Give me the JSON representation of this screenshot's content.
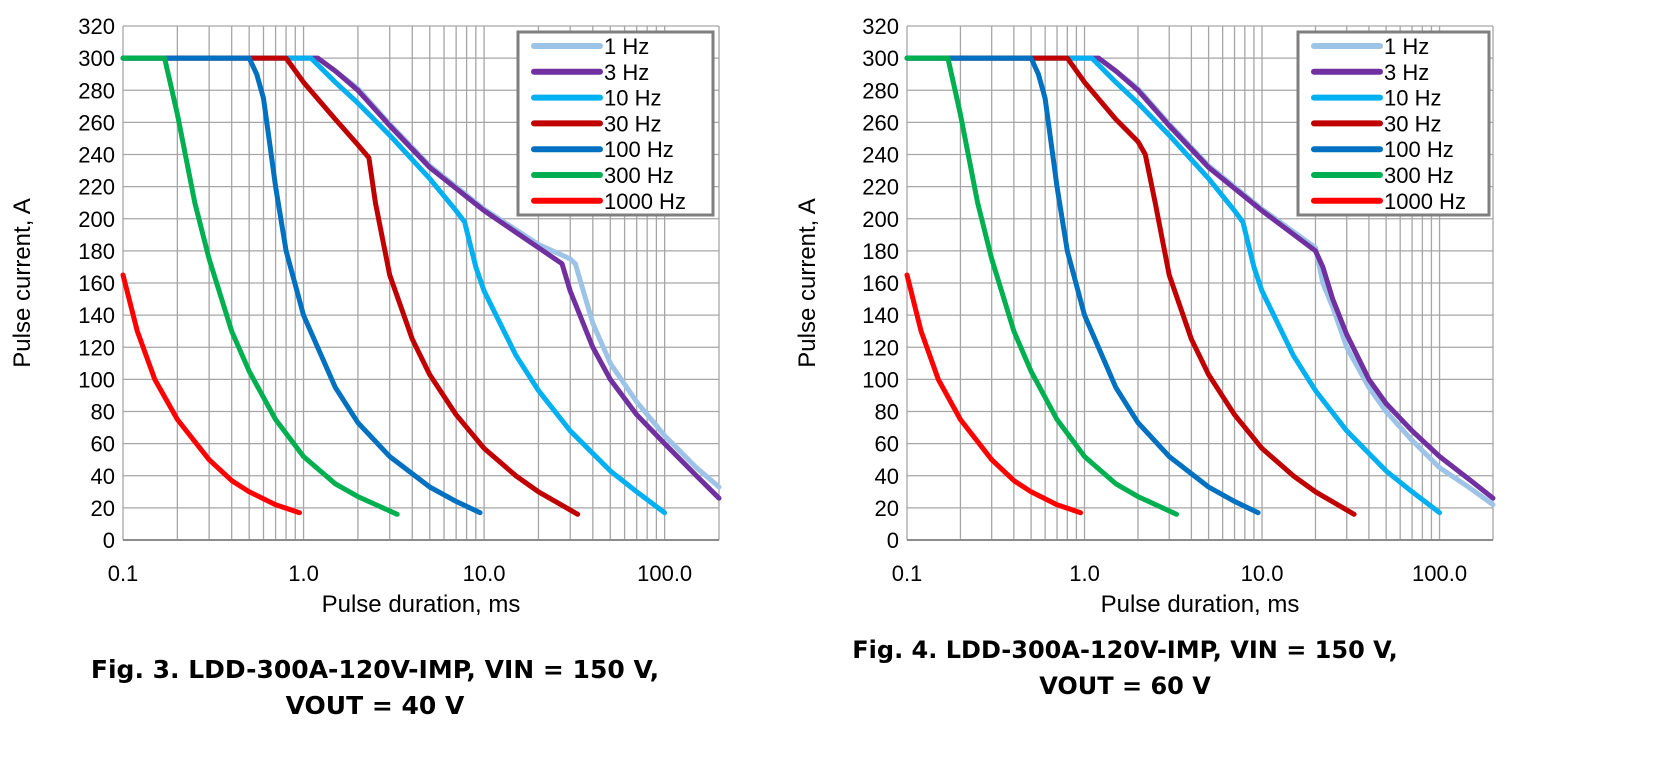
{
  "chart_data": [
    {
      "type": "line",
      "title": "",
      "caption_line1": "Fig. 3. LDD-300A-120V-IMP, VIN = 150 V,",
      "caption_line2": "VOUT = 40 V",
      "xlabel": "Pulse duration, ms",
      "ylabel": "Pulse current, A",
      "xscale": "log",
      "xlim": [
        0.1,
        200
      ],
      "ylim": [
        0,
        320
      ],
      "xticks": [
        0.1,
        1,
        10,
        100
      ],
      "xtick_labels": [
        "0.1",
        "1.0",
        "10.0",
        "100.0"
      ],
      "yticks": [
        0,
        20,
        40,
        60,
        80,
        100,
        120,
        140,
        160,
        180,
        200,
        220,
        240,
        260,
        280,
        300,
        320
      ],
      "ytick_labels": [
        "0",
        "20",
        "40",
        "60",
        "80",
        "100",
        "120",
        "140",
        "160",
        "180",
        "200",
        "220",
        "240",
        "260",
        "280",
        "300",
        "320"
      ],
      "grid": true,
      "legend_position": "top-right",
      "series": [
        {
          "name": "1 Hz",
          "color": "#9DC3E6",
          "points": [
            [
              0.1,
              300
            ],
            [
              1.2,
              300
            ],
            [
              1.5,
              292
            ],
            [
              2,
              281
            ],
            [
              3,
              259
            ],
            [
              5,
              233
            ],
            [
              10,
              206
            ],
            [
              20,
              184
            ],
            [
              30,
              175
            ],
            [
              32,
              172
            ],
            [
              40,
              135
            ],
            [
              50,
              110
            ],
            [
              70,
              86
            ],
            [
              100,
              65
            ],
            [
              150,
              45
            ],
            [
              200,
              33
            ]
          ]
        },
        {
          "name": "3 Hz",
          "color": "#7030A0",
          "points": [
            [
              0.1,
              300
            ],
            [
              1.2,
              300
            ],
            [
              1.5,
              292
            ],
            [
              2,
              280
            ],
            [
              3,
              258
            ],
            [
              5,
              232
            ],
            [
              10,
              205
            ],
            [
              20,
              182
            ],
            [
              27,
              172
            ],
            [
              30,
              155
            ],
            [
              40,
              120
            ],
            [
              50,
              100
            ],
            [
              70,
              78
            ],
            [
              100,
              60
            ],
            [
              150,
              40
            ],
            [
              200,
              26
            ]
          ]
        },
        {
          "name": "10 Hz",
          "color": "#00B0F0",
          "points": [
            [
              0.1,
              300
            ],
            [
              1.1,
              300
            ],
            [
              1.5,
              285
            ],
            [
              2,
              272
            ],
            [
              3,
              252
            ],
            [
              5,
              225
            ],
            [
              7,
              205
            ],
            [
              7.8,
              198
            ],
            [
              9,
              170
            ],
            [
              10,
              155
            ],
            [
              15,
              115
            ],
            [
              20,
              93
            ],
            [
              30,
              68
            ],
            [
              50,
              43
            ],
            [
              70,
              30
            ],
            [
              100,
              17
            ]
          ]
        },
        {
          "name": "30 Hz",
          "color": "#C00000",
          "points": [
            [
              0.1,
              300
            ],
            [
              0.8,
              300
            ],
            [
              1.0,
              285
            ],
            [
              1.5,
              262
            ],
            [
              2.0,
              246
            ],
            [
              2.3,
              238
            ],
            [
              2.5,
              210
            ],
            [
              3,
              165
            ],
            [
              4,
              125
            ],
            [
              5,
              103
            ],
            [
              7,
              78
            ],
            [
              10,
              57
            ],
            [
              15,
              40
            ],
            [
              20,
              30
            ],
            [
              33,
              16
            ]
          ]
        },
        {
          "name": "100 Hz",
          "color": "#0070C0",
          "points": [
            [
              0.1,
              300
            ],
            [
              0.5,
              300
            ],
            [
              0.55,
              290
            ],
            [
              0.6,
              275
            ],
            [
              0.7,
              220
            ],
            [
              0.8,
              180
            ],
            [
              1.0,
              140
            ],
            [
              1.5,
              95
            ],
            [
              2,
              73
            ],
            [
              3,
              52
            ],
            [
              5,
              33
            ],
            [
              7,
              24
            ],
            [
              9.5,
              17
            ]
          ]
        },
        {
          "name": "300 Hz",
          "color": "#00B050",
          "points": [
            [
              0.1,
              300
            ],
            [
              0.17,
              300
            ],
            [
              0.2,
              265
            ],
            [
              0.25,
              210
            ],
            [
              0.3,
              175
            ],
            [
              0.4,
              130
            ],
            [
              0.5,
              105
            ],
            [
              0.7,
              75
            ],
            [
              1.0,
              52
            ],
            [
              1.5,
              35
            ],
            [
              2.0,
              27
            ],
            [
              3.3,
              16
            ]
          ]
        },
        {
          "name": "1000 Hz",
          "color": "#FF0000",
          "points": [
            [
              0.1,
              165
            ],
            [
              0.12,
              130
            ],
            [
              0.15,
              100
            ],
            [
              0.2,
              75
            ],
            [
              0.3,
              50
            ],
            [
              0.4,
              37
            ],
            [
              0.5,
              30
            ],
            [
              0.7,
              22
            ],
            [
              0.95,
              17
            ]
          ]
        }
      ]
    },
    {
      "type": "line",
      "title": "",
      "caption_line1": "Fig. 4. LDD-300A-120V-IMP, VIN = 150 V,",
      "caption_line2": "VOUT = 60 V",
      "xlabel": "Pulse duration, ms",
      "ylabel": "Pulse current, A",
      "xscale": "log",
      "xlim": [
        0.1,
        200
      ],
      "ylim": [
        0,
        320
      ],
      "xticks": [
        0.1,
        1,
        10,
        100
      ],
      "xtick_labels": [
        "0.1",
        "1.0",
        "10.0",
        "100.0"
      ],
      "yticks": [
        0,
        20,
        40,
        60,
        80,
        100,
        120,
        140,
        160,
        180,
        200,
        220,
        240,
        260,
        280,
        300,
        320
      ],
      "ytick_labels": [
        "0",
        "20",
        "40",
        "60",
        "80",
        "100",
        "120",
        "140",
        "160",
        "180",
        "200",
        "220",
        "240",
        "260",
        "280",
        "300",
        "320"
      ],
      "grid": true,
      "legend_position": "top-right",
      "series": [
        {
          "name": "1 Hz",
          "color": "#9DC3E6",
          "points": [
            [
              0.1,
              300
            ],
            [
              1.2,
              300
            ],
            [
              1.5,
              292
            ],
            [
              2,
              281
            ],
            [
              3,
              259
            ],
            [
              5,
              233
            ],
            [
              10,
              206
            ],
            [
              20,
              182
            ],
            [
              22,
              160
            ],
            [
              25,
              145
            ],
            [
              30,
              120
            ],
            [
              40,
              95
            ],
            [
              50,
              80
            ],
            [
              70,
              62
            ],
            [
              100,
              45
            ],
            [
              150,
              32
            ],
            [
              200,
              22
            ]
          ]
        },
        {
          "name": "3 Hz",
          "color": "#7030A0",
          "points": [
            [
              0.1,
              300
            ],
            [
              1.2,
              300
            ],
            [
              1.5,
              292
            ],
            [
              2,
              280
            ],
            [
              3,
              258
            ],
            [
              5,
              232
            ],
            [
              10,
              205
            ],
            [
              20,
              180
            ],
            [
              22,
              170
            ],
            [
              25,
              150
            ],
            [
              30,
              128
            ],
            [
              40,
              100
            ],
            [
              50,
              85
            ],
            [
              70,
              68
            ],
            [
              100,
              52
            ],
            [
              150,
              37
            ],
            [
              200,
              26
            ]
          ]
        },
        {
          "name": "10 Hz",
          "color": "#00B0F0",
          "points": [
            [
              0.1,
              300
            ],
            [
              1.1,
              300
            ],
            [
              1.5,
              285
            ],
            [
              2,
              272
            ],
            [
              3,
              252
            ],
            [
              5,
              225
            ],
            [
              7,
              205
            ],
            [
              7.8,
              198
            ],
            [
              9,
              170
            ],
            [
              10,
              155
            ],
            [
              15,
              115
            ],
            [
              20,
              93
            ],
            [
              30,
              68
            ],
            [
              50,
              43
            ],
            [
              70,
              30
            ],
            [
              100,
              17
            ]
          ]
        },
        {
          "name": "30 Hz",
          "color": "#C00000",
          "points": [
            [
              0.1,
              300
            ],
            [
              0.8,
              300
            ],
            [
              1.0,
              285
            ],
            [
              1.5,
              262
            ],
            [
              2.0,
              248
            ],
            [
              2.2,
              240
            ],
            [
              2.5,
              210
            ],
            [
              3,
              165
            ],
            [
              4,
              125
            ],
            [
              5,
              103
            ],
            [
              7,
              78
            ],
            [
              10,
              57
            ],
            [
              15,
              40
            ],
            [
              20,
              30
            ],
            [
              33,
              16
            ]
          ]
        },
        {
          "name": "100 Hz",
          "color": "#0070C0",
          "points": [
            [
              0.1,
              300
            ],
            [
              0.5,
              300
            ],
            [
              0.55,
              290
            ],
            [
              0.6,
              275
            ],
            [
              0.7,
              220
            ],
            [
              0.8,
              180
            ],
            [
              1.0,
              140
            ],
            [
              1.5,
              95
            ],
            [
              2,
              73
            ],
            [
              3,
              52
            ],
            [
              5,
              33
            ],
            [
              7,
              24
            ],
            [
              9.5,
              17
            ]
          ]
        },
        {
          "name": "300 Hz",
          "color": "#00B050",
          "points": [
            [
              0.1,
              300
            ],
            [
              0.17,
              300
            ],
            [
              0.2,
              265
            ],
            [
              0.25,
              210
            ],
            [
              0.3,
              175
            ],
            [
              0.4,
              130
            ],
            [
              0.5,
              105
            ],
            [
              0.7,
              75
            ],
            [
              1.0,
              52
            ],
            [
              1.5,
              35
            ],
            [
              2.0,
              27
            ],
            [
              3.3,
              16
            ]
          ]
        },
        {
          "name": "1000 Hz",
          "color": "#FF0000",
          "points": [
            [
              0.1,
              165
            ],
            [
              0.12,
              130
            ],
            [
              0.15,
              100
            ],
            [
              0.2,
              75
            ],
            [
              0.3,
              50
            ],
            [
              0.4,
              37
            ],
            [
              0.5,
              30
            ],
            [
              0.7,
              22
            ],
            [
              0.95,
              17
            ]
          ]
        }
      ]
    }
  ]
}
